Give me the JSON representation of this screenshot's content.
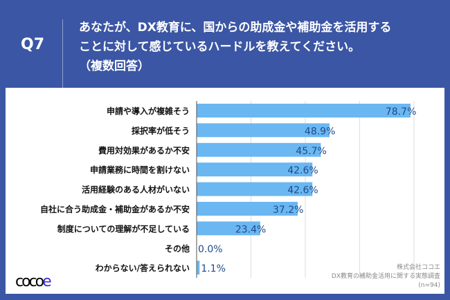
{
  "header": {
    "question": "Q7",
    "title": "あなたが、DX教育に、国からの助成金や補助金を活用する\nことに対して感じているハードルを教えてください。\n（複数回答）"
  },
  "chart_data": {
    "type": "bar",
    "orientation": "horizontal",
    "xlim": [
      0,
      80
    ],
    "grid": true,
    "categories": [
      "申請や導入が複雑そう",
      "採択率が低そう",
      "費用対効果があるか不安",
      "申請業務に時間を割けない",
      "活用経験のある人材がいない",
      "自社に合う助成金・補助金があるか不安",
      "制度についての理解が不足している",
      "その他",
      "わからない/答えられない"
    ],
    "values": [
      78.7,
      48.9,
      45.7,
      42.6,
      42.6,
      37.2,
      23.4,
      0.0,
      1.1
    ],
    "value_labels": [
      "78.7%",
      "48.9%",
      "45.7%",
      "42.6%",
      "42.6%",
      "37.2%",
      "23.4%",
      "0.0%",
      "1.1%"
    ],
    "bar_color": "#6ab7f2",
    "label_color": "#1f4a8a"
  },
  "footer": {
    "logo": "cocoe",
    "company": "株式会社ココエ",
    "survey": "DX教育の補助金活用に関する実態調査",
    "n": "(n=94)"
  },
  "colors": {
    "header_bg": "#3b56a4"
  }
}
